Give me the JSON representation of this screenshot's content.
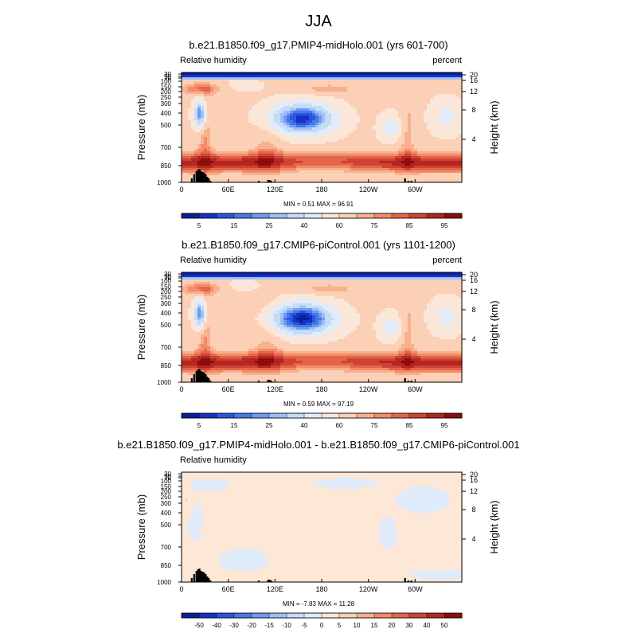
{
  "page": {
    "title": "JJA"
  },
  "colors": {
    "seq": [
      "#0a1f9a",
      "#1532c4",
      "#2a56df",
      "#4579ea",
      "#6e9bf1",
      "#9ebff5",
      "#c6dbf7",
      "#e0ecfa",
      "#fbe7d9",
      "#fbd0b6",
      "#f8b08e",
      "#f28b68",
      "#e4664a",
      "#cf4332",
      "#b32621",
      "#8c0d0d"
    ],
    "diff": [
      "#0a1f9a",
      "#1532c4",
      "#2a56df",
      "#4579ea",
      "#6e9bf1",
      "#9ebff5",
      "#c6dbf7",
      "#dfeafb",
      "#fde7d6",
      "#fbd0b6",
      "#f8b08e",
      "#f28b68",
      "#e4664a",
      "#cf4332",
      "#b32621",
      "#8c0d0d"
    ],
    "terrain": "#000000"
  },
  "chart_data": [
    {
      "type": "heatmap",
      "title": "b.e21.B1850.f09_g17.PMIP4-midHolo.001 (yrs 601-700)",
      "left_label": "Relative humidity",
      "right_label": "percent",
      "ylabel": "Pressure (mb)",
      "y2label": "Height (km)",
      "stats": "MIN =   0.51  MAX =  96.91",
      "min": 0.51,
      "max": 96.91,
      "x_ticks": [
        "0",
        "60E",
        "120E",
        "180",
        "120W",
        "60W"
      ],
      "y_ticks": [
        "1000",
        "850",
        "700",
        "500",
        "400",
        "300",
        "250",
        "200",
        "150",
        "100",
        "70",
        "50",
        "30"
      ],
      "y2_ticks": [
        "4",
        "8",
        "12",
        "16",
        "20"
      ],
      "colorbar_labels": [
        "5",
        "15",
        "25",
        "40",
        "60",
        "75",
        "85",
        "95"
      ],
      "features": [
        {
          "lon": 85,
          "p": 400,
          "value": 10
        },
        {
          "lon": 155,
          "p": 450,
          "value": 8
        },
        {
          "lon": 30,
          "p": 200,
          "value": 82
        },
        {
          "lon": 190,
          "p": 200,
          "value": 70
        }
      ]
    },
    {
      "type": "heatmap",
      "title": "b.e21.B1850.f09_g17.CMIP6-piControl.001 (yrs 1101-1200)",
      "left_label": "Relative humidity",
      "right_label": "percent",
      "ylabel": "Pressure (mb)",
      "y2label": "Height (km)",
      "stats": "MIN =   0.59  MAX =  97.19",
      "min": 0.59,
      "max": 97.19,
      "x_ticks": [
        "0",
        "60E",
        "120E",
        "180",
        "120W",
        "60W"
      ],
      "y_ticks": [
        "1000",
        "850",
        "700",
        "500",
        "400",
        "300",
        "250",
        "200",
        "150",
        "100",
        "70",
        "50",
        "30"
      ],
      "y2_ticks": [
        "4",
        "8",
        "12",
        "16",
        "20"
      ],
      "colorbar_labels": [
        "5",
        "15",
        "25",
        "40",
        "60",
        "75",
        "85",
        "95"
      ],
      "features": [
        {
          "lon": 85,
          "p": 400,
          "value": 10
        },
        {
          "lon": 155,
          "p": 420,
          "value": 6
        },
        {
          "lon": 30,
          "p": 200,
          "value": 85
        },
        {
          "lon": 190,
          "p": 200,
          "value": 70
        }
      ]
    },
    {
      "type": "heatmap",
      "title": "b.e21.B1850.f09_g17.PMIP4-midHolo.001 - b.e21.B1850.f09_g17.CMIP6-piControl.001",
      "left_label": "Relative humidity",
      "right_label": "",
      "ylabel": "Pressure (mb)",
      "y2label": "Height (km)",
      "stats": "MIN =  -7.83  MAX =  11.28",
      "min": -7.83,
      "max": 11.28,
      "x_ticks": [
        "0",
        "60E",
        "120E",
        "180",
        "120W",
        "60W"
      ],
      "y_ticks": [
        "1000",
        "850",
        "700",
        "500",
        "400",
        "300",
        "250",
        "200",
        "150",
        "100",
        "70",
        "50",
        "30"
      ],
      "y2_ticks": [
        "4",
        "8",
        "12",
        "16",
        "20"
      ],
      "colorbar_labels": [
        "-50",
        "-40",
        "-30",
        "-20",
        "-15",
        "-10",
        "-5",
        "0",
        "5",
        "10",
        "15",
        "20",
        "30",
        "40",
        "50"
      ],
      "features": [
        {
          "lon": 10,
          "p": 250,
          "value": 8
        },
        {
          "lon": 20,
          "p": 400,
          "value": -5
        },
        {
          "lon": 265,
          "p": 550,
          "value": -4
        },
        {
          "lon": 355,
          "p": 300,
          "value": 4
        }
      ]
    }
  ]
}
